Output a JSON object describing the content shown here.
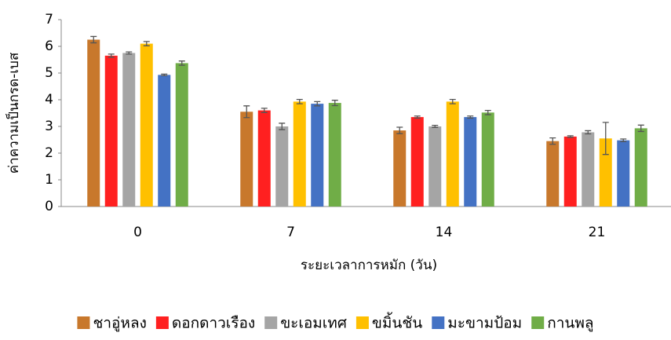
{
  "chart_data": {
    "type": "bar",
    "x_label": "ระยะเวลาการหมัก (วัน)",
    "y_label": "ค่าความเป็นกรด-เบส",
    "categories": [
      "0",
      "7",
      "14",
      "21"
    ],
    "ylim": [
      0,
      7
    ],
    "yticks": [
      0,
      1,
      2,
      3,
      4,
      5,
      6,
      7
    ],
    "legend": "bottom",
    "series": [
      {
        "name": "ชาอู่หลง",
        "color": "#c8782c",
        "values": [
          6.25,
          3.55,
          2.85,
          2.45
        ],
        "errors": [
          0.12,
          0.22,
          0.12,
          0.12
        ]
      },
      {
        "name": "ดอกดาวเรือง",
        "color": "#ff2020",
        "values": [
          5.65,
          3.6,
          3.35,
          2.62
        ],
        "errors": [
          0.06,
          0.08,
          0.04,
          0.03
        ]
      },
      {
        "name": "ขะเอมเทศ",
        "color": "#a5a5a5",
        "values": [
          5.75,
          3.0,
          3.0,
          2.78
        ],
        "errors": [
          0.04,
          0.12,
          0.04,
          0.06
        ]
      },
      {
        "name": "ขมิ้นชัน",
        "color": "#ffc000",
        "values": [
          6.1,
          3.93,
          3.93,
          2.55
        ],
        "errors": [
          0.08,
          0.08,
          0.08,
          0.6
        ]
      },
      {
        "name": "มะขามป้อม",
        "color": "#4472c4",
        "values": [
          4.93,
          3.85,
          3.35,
          2.48
        ],
        "errors": [
          0.03,
          0.08,
          0.04,
          0.05
        ]
      },
      {
        "name": "กานพลู",
        "color": "#70ad47",
        "values": [
          5.37,
          3.88,
          3.52,
          2.93
        ],
        "errors": [
          0.08,
          0.1,
          0.08,
          0.12
        ]
      }
    ]
  }
}
